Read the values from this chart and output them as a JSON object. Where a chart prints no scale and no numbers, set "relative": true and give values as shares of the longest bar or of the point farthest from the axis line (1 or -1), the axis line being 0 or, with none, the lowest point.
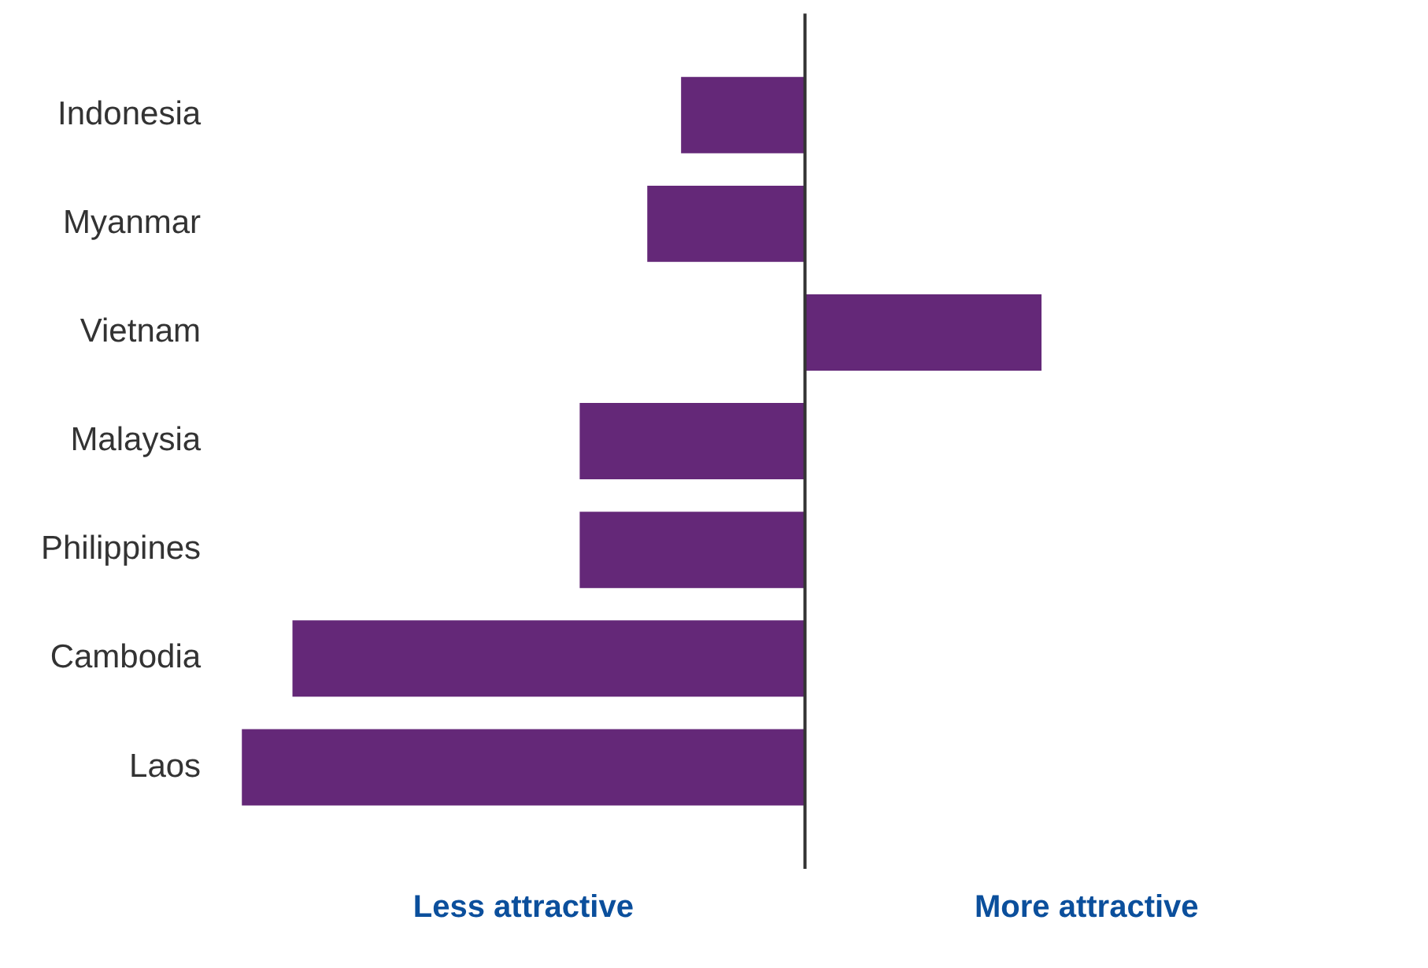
{
  "chart_data": {
    "type": "bar",
    "orientation": "horizontal",
    "relative": true,
    "categories": [
      "Indonesia",
      "Myanmar",
      "Vietnam",
      "Malaysia",
      "Philippines",
      "Cambodia",
      "Laos"
    ],
    "values": [
      -0.22,
      -0.28,
      0.42,
      -0.4,
      -0.4,
      -0.91,
      -1
    ],
    "color": "#642878",
    "annotations": [
      "Less attractive",
      "More attractive"
    ]
  }
}
